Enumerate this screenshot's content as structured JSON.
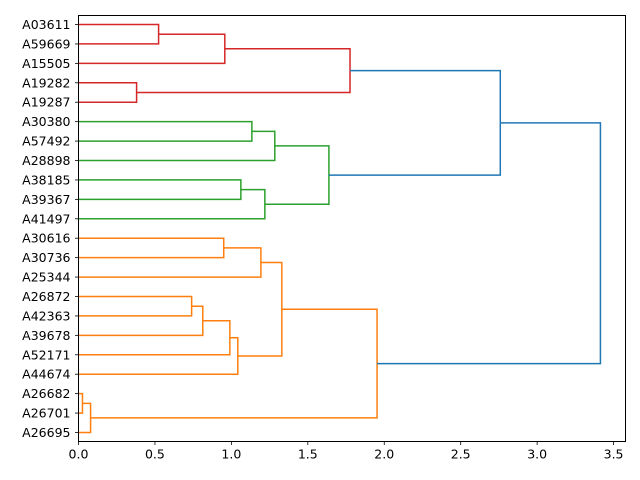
{
  "chart_data": {
    "type": "dendrogram",
    "orientation": "left",
    "title": "",
    "xlabel": "",
    "ylabel": "",
    "xlim": [
      0,
      3.578
    ],
    "xticks": [
      0.0,
      0.5,
      1.0,
      1.5,
      2.0,
      2.5,
      3.0,
      3.5
    ],
    "xtick_labels": [
      "0.0",
      "0.5",
      "1.0",
      "1.5",
      "2.0",
      "2.5",
      "3.0",
      "3.5"
    ],
    "grid": false,
    "colors": {
      "red": "#d62728",
      "green": "#2ca02c",
      "orange": "#ff7f0e",
      "blue": "#1f77b4"
    },
    "leaves": [
      "A03611",
      "A59669",
      "A15505",
      "A19282",
      "A19287",
      "A30380",
      "A57492",
      "A28898",
      "A38185",
      "A39367",
      "A41497",
      "A30616",
      "A30736",
      "A25344",
      "A26872",
      "A42363",
      "A39678",
      "A52171",
      "A44674",
      "A26682",
      "A26701",
      "A26695"
    ],
    "merges": [
      {
        "id": "C0",
        "left": "L0",
        "right": "L1",
        "height": 0.524,
        "color": "red"
      },
      {
        "id": "C1",
        "left": "C0",
        "right": "L2",
        "height": 0.957,
        "color": "red"
      },
      {
        "id": "C2",
        "left": "L3",
        "right": "L4",
        "height": 0.38,
        "color": "red"
      },
      {
        "id": "C3",
        "left": "C1",
        "right": "C2",
        "height": 1.776,
        "color": "red"
      },
      {
        "id": "C4",
        "left": "L5",
        "right": "L6",
        "height": 1.134,
        "color": "green"
      },
      {
        "id": "C5",
        "left": "C4",
        "right": "L7",
        "height": 1.284,
        "color": "green"
      },
      {
        "id": "C6",
        "left": "L8",
        "right": "L9",
        "height": 1.062,
        "color": "green"
      },
      {
        "id": "C7",
        "left": "C6",
        "right": "L10",
        "height": 1.219,
        "color": "green"
      },
      {
        "id": "C8",
        "left": "C5",
        "right": "C7",
        "height": 1.638,
        "color": "green"
      },
      {
        "id": "C9",
        "left": "C3",
        "right": "C8",
        "height": 2.759,
        "color": "blue"
      },
      {
        "id": "C10",
        "left": "L11",
        "right": "L12",
        "height": 0.95,
        "color": "orange"
      },
      {
        "id": "C11",
        "left": "C10",
        "right": "L13",
        "height": 1.193,
        "color": "orange"
      },
      {
        "id": "C12",
        "left": "L14",
        "right": "L15",
        "height": 0.74,
        "color": "orange"
      },
      {
        "id": "C13",
        "left": "C12",
        "right": "L16",
        "height": 0.813,
        "color": "orange"
      },
      {
        "id": "C14",
        "left": "C13",
        "right": "L17",
        "height": 0.99,
        "color": "orange"
      },
      {
        "id": "C15",
        "left": "C14",
        "right": "L18",
        "height": 1.042,
        "color": "orange"
      },
      {
        "id": "C16",
        "left": "C11",
        "right": "C15",
        "height": 1.33,
        "color": "orange"
      },
      {
        "id": "C17",
        "left": "L19",
        "right": "L20",
        "height": 0.026,
        "color": "orange"
      },
      {
        "id": "C18",
        "left": "C17",
        "right": "L21",
        "height": 0.079,
        "color": "orange"
      },
      {
        "id": "C19",
        "left": "C16",
        "right": "C18",
        "height": 1.953,
        "color": "orange"
      },
      {
        "id": "C20",
        "left": "C9",
        "right": "C19",
        "height": 3.414,
        "color": "blue"
      }
    ]
  }
}
